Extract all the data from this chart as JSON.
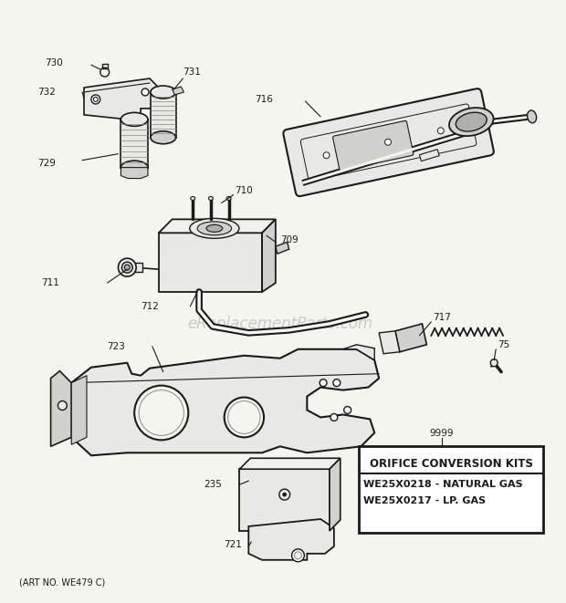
{
  "background_color": "#f5f5f0",
  "watermark": "eReplacementParts.com",
  "art_no": "(ART NO. WE479 C)",
  "box_label_title": "ORIFICE CONVERSION KITS",
  "box_label_line1": "WE25X0218 - NATURAL GAS",
  "box_label_line2": "WE25X0217 - LP. GAS",
  "box_label_part": "9999",
  "line_color": "#1a1a1a",
  "fill_light": "#e8e8e4",
  "fill_mid": "#d0d0cc",
  "fill_dark": "#b0b0aa"
}
